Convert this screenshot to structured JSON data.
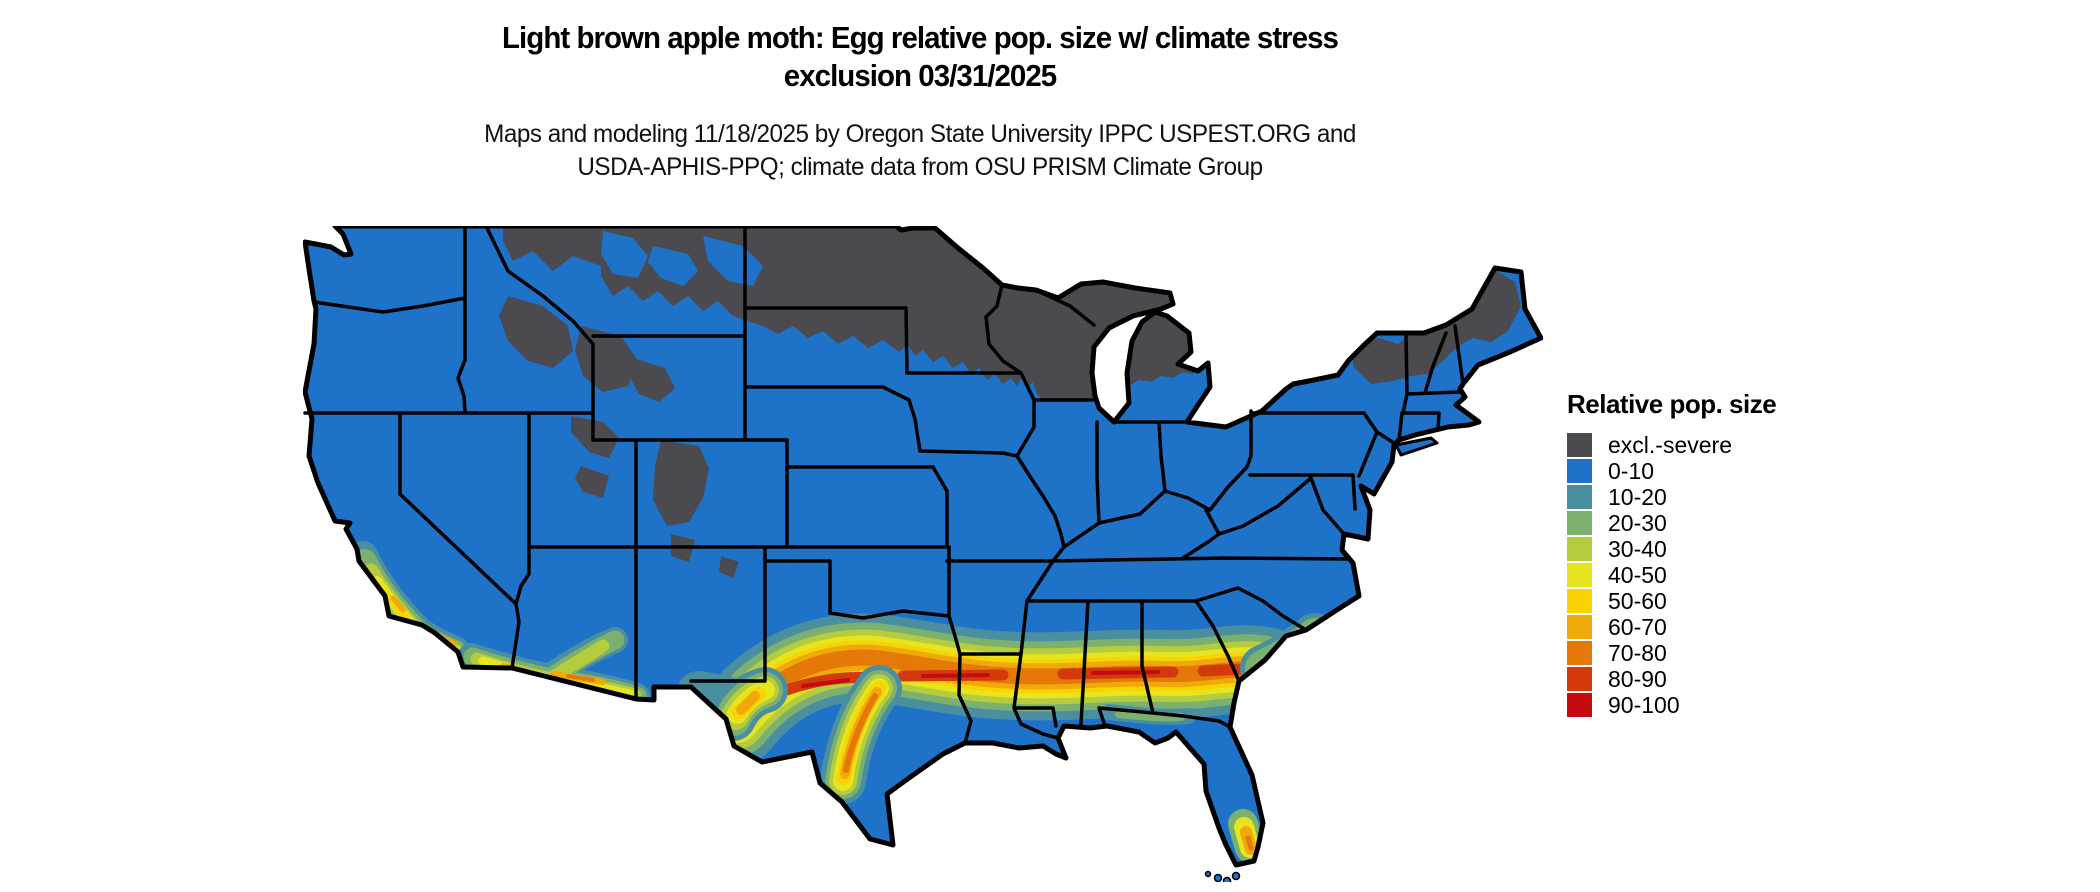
{
  "title": {
    "line1": "Light brown apple moth: Egg relative pop. size w/ climate stress",
    "line2": "exclusion 03/31/2025"
  },
  "subtitle": {
    "line1": "Maps and modeling 11/18/2025 by Oregon State University IPPC USPEST.ORG and",
    "line2": "USDA-APHIS-PPQ; climate data from OSU PRISM Climate Group"
  },
  "legend": {
    "title": "Relative pop. size",
    "items": [
      {
        "label": "excl.-severe",
        "color": "#4b4b4f"
      },
      {
        "label": "0-10",
        "color": "#1e72c8"
      },
      {
        "label": "10-20",
        "color": "#4a8fa0"
      },
      {
        "label": "20-30",
        "color": "#7cb06e"
      },
      {
        "label": "30-40",
        "color": "#b5cc3e"
      },
      {
        "label": "40-50",
        "color": "#e7e520"
      },
      {
        "label": "50-60",
        "color": "#f7d402"
      },
      {
        "label": "60-70",
        "color": "#f0a90b"
      },
      {
        "label": "70-80",
        "color": "#e57908"
      },
      {
        "label": "80-90",
        "color": "#d23a0c"
      },
      {
        "label": "90-100",
        "color": "#c30b10"
      }
    ]
  },
  "map": {
    "region": "Contiguous United States",
    "variable": "Egg relative population size with climate stress exclusion",
    "date_shown": "03/31/2025",
    "background": "#ffffff",
    "outline_color": "#000000",
    "state_line_color": "#000000",
    "notes": {
      "excluded_area": "Northern plains, upper Midwest, Rockies and northern New England shown as excl.-severe (dark gray)",
      "low_area": "Most of the country 0-10 (blue)",
      "high_band": "East-west band of 60-90+ values across the southern states from west Texas to the South Carolina coast",
      "other_high": "Central/coastal California, southern Arizona and the southern tip of Florida show elevated values"
    }
  }
}
